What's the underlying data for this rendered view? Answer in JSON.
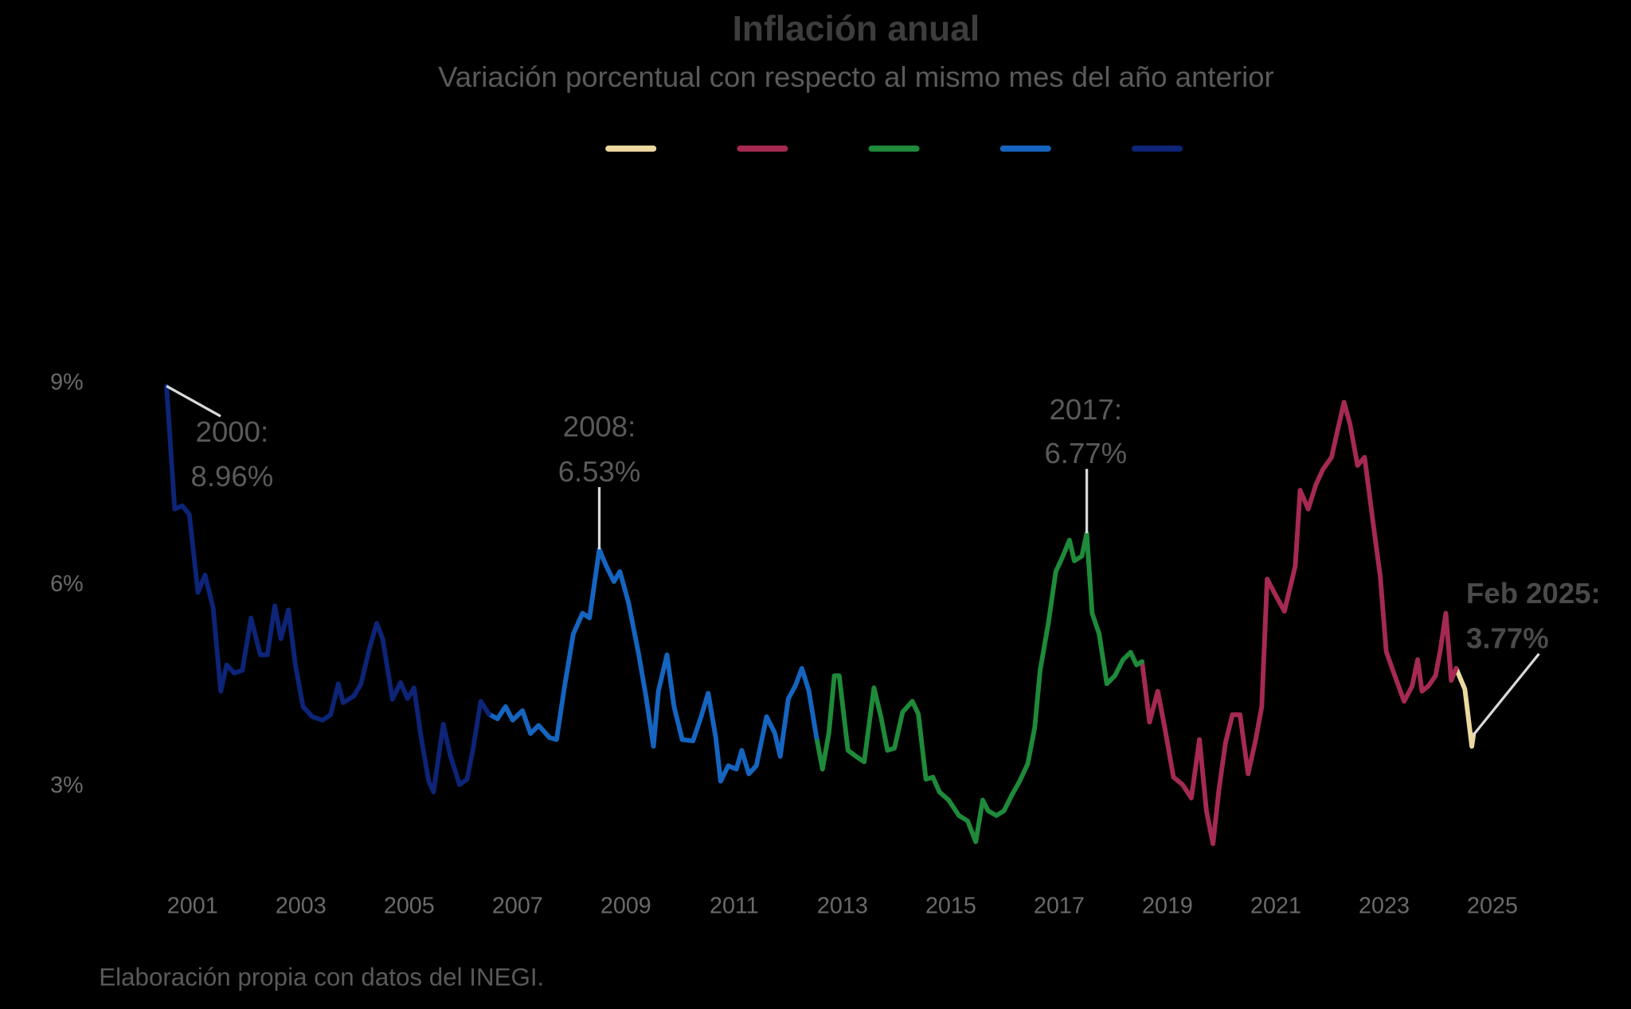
{
  "chart_data": {
    "type": "line",
    "title": "Inflación anual",
    "subtitle": "Variación porcentual con respecto al mismo mes del año anterior",
    "source": "Elaboración propia con datos del INEGI.",
    "xlim": [
      2000,
      2026
    ],
    "xticks": [
      2001,
      2003,
      2005,
      2007,
      2009,
      2011,
      2013,
      2015,
      2017,
      2019,
      2021,
      2023,
      2025
    ],
    "ylim": [
      1.5,
      10
    ],
    "yticks": [
      {
        "value": 3,
        "label": "3%"
      },
      {
        "value": 6,
        "label": "6%"
      },
      {
        "value": 9,
        "label": "9%"
      }
    ],
    "grid": false,
    "series": [
      {
        "color": "#ecd9a0",
        "x": [
          2024.33,
          2024.49,
          2024.62,
          2024.65
        ],
        "values": [
          4.76,
          4.45,
          3.6,
          3.77
        ]
      },
      {
        "color": "#a52a52",
        "x": [
          2018.53,
          2018.67,
          2018.82,
          2018.95,
          2019.11,
          2019.28,
          2019.44,
          2019.59,
          2019.72,
          2019.84,
          2019.95,
          2020.07,
          2020.2,
          2020.34,
          2020.49,
          2020.63,
          2020.74,
          2020.84,
          2020.97,
          2021.16,
          2021.36,
          2021.45,
          2021.6,
          2021.74,
          2021.87,
          2022.03,
          2022.16,
          2022.26,
          2022.37,
          2022.51,
          2022.64,
          2022.79,
          2022.93,
          2023.04,
          2023.18,
          2023.37,
          2023.52,
          2023.62,
          2023.7,
          2023.82,
          2023.95,
          2024.04,
          2024.14,
          2024.24,
          2024.33
        ],
        "values": [
          4.86,
          3.96,
          4.42,
          3.88,
          3.14,
          3.03,
          2.83,
          3.7,
          2.64,
          2.15,
          2.95,
          3.65,
          4.07,
          4.07,
          3.19,
          3.7,
          4.19,
          6.09,
          5.89,
          5.61,
          6.28,
          7.41,
          7.13,
          7.49,
          7.72,
          7.9,
          8.37,
          8.72,
          8.4,
          7.78,
          7.9,
          6.97,
          6.12,
          5.01,
          4.69,
          4.27,
          4.5,
          4.89,
          4.42,
          4.5,
          4.65,
          5.04,
          5.58,
          4.58,
          4.76
        ]
      },
      {
        "color": "#1e8a3a",
        "x": [
          2012.52,
          2012.63,
          2012.75,
          2012.85,
          2012.94,
          2013.1,
          2013.25,
          2013.4,
          2013.58,
          2013.71,
          2013.83,
          2013.96,
          2014.11,
          2014.29,
          2014.4,
          2014.54,
          2014.67,
          2014.79,
          2014.96,
          2015.15,
          2015.31,
          2015.46,
          2015.59,
          2015.69,
          2015.84,
          2015.98,
          2016.13,
          2016.27,
          2016.42,
          2016.55,
          2016.65,
          2016.8,
          2016.94,
          2017.07,
          2017.19,
          2017.28,
          2017.42,
          2017.51,
          2017.61,
          2017.74,
          2017.88,
          2018.03,
          2018.18,
          2018.32,
          2018.43,
          2018.53
        ],
        "values": [
          3.73,
          3.26,
          3.8,
          4.65,
          4.65,
          3.54,
          3.45,
          3.37,
          4.47,
          4.04,
          3.54,
          3.57,
          4.11,
          4.27,
          4.08,
          3.11,
          3.14,
          2.92,
          2.8,
          2.57,
          2.49,
          2.18,
          2.8,
          2.64,
          2.57,
          2.64,
          2.88,
          3.08,
          3.34,
          3.88,
          4.73,
          5.43,
          6.2,
          6.43,
          6.67,
          6.36,
          6.43,
          6.77,
          5.58,
          5.27,
          4.53,
          4.65,
          4.89,
          5.0,
          4.81,
          4.86
        ]
      },
      {
        "color": "#1565c0",
        "x": [
          2006.47,
          2006.63,
          2006.78,
          2006.91,
          2007.09,
          2007.24,
          2007.39,
          2007.59,
          2007.72,
          2007.87,
          2008.03,
          2008.2,
          2008.33,
          2008.51,
          2008.64,
          2008.78,
          2008.89,
          2009.05,
          2009.24,
          2009.37,
          2009.51,
          2009.6,
          2009.76,
          2009.89,
          2010.04,
          2010.24,
          2010.39,
          2010.52,
          2010.66,
          2010.75,
          2010.89,
          2011.04,
          2011.14,
          2011.27,
          2011.41,
          2011.6,
          2011.75,
          2011.85,
          2012.0,
          2012.13,
          2012.25,
          2012.38,
          2012.52
        ],
        "values": [
          4.08,
          4.01,
          4.19,
          3.99,
          4.13,
          3.79,
          3.91,
          3.73,
          3.7,
          4.5,
          5.27,
          5.58,
          5.51,
          6.53,
          6.28,
          6.05,
          6.2,
          5.74,
          4.96,
          4.35,
          3.6,
          4.42,
          4.96,
          4.19,
          3.7,
          3.68,
          4.04,
          4.39,
          3.73,
          3.08,
          3.31,
          3.26,
          3.54,
          3.19,
          3.31,
          4.04,
          3.8,
          3.45,
          4.31,
          4.5,
          4.76,
          4.42,
          3.73
        ]
      },
      {
        "color": "#0d2477",
        "x": [
          2000.52,
          2000.67,
          2000.81,
          2000.94,
          2001.1,
          2001.23,
          2001.38,
          2001.52,
          2001.63,
          2001.77,
          2001.92,
          2002.08,
          2002.25,
          2002.38,
          2002.52,
          2002.63,
          2002.77,
          2002.9,
          2003.04,
          2003.21,
          2003.4,
          2003.55,
          2003.69,
          2003.78,
          2003.98,
          2004.11,
          2004.26,
          2004.4,
          2004.51,
          2004.69,
          2004.84,
          2004.97,
          2005.09,
          2005.22,
          2005.36,
          2005.45,
          2005.63,
          2005.76,
          2005.93,
          2006.07,
          2006.18,
          2006.32,
          2006.47
        ],
        "values": [
          8.96,
          7.13,
          7.18,
          7.05,
          5.89,
          6.15,
          5.66,
          4.42,
          4.81,
          4.69,
          4.73,
          5.51,
          4.96,
          4.96,
          5.69,
          5.2,
          5.63,
          4.81,
          4.19,
          4.04,
          3.99,
          4.07,
          4.53,
          4.25,
          4.35,
          4.53,
          5.04,
          5.43,
          5.2,
          4.3,
          4.55,
          4.31,
          4.47,
          3.73,
          3.08,
          2.92,
          3.93,
          3.46,
          3.03,
          3.11,
          3.57,
          4.27,
          4.08
        ]
      }
    ],
    "annotations": [
      {
        "label": "2000:",
        "value_label": "8.96%",
        "x": 2000.52,
        "y": 8.96
      },
      {
        "label": "2008:",
        "value_label": "6.53%",
        "x": 2008.51,
        "y": 6.53
      },
      {
        "label": "2017:",
        "value_label": "6.77%",
        "x": 2017.51,
        "y": 6.77
      },
      {
        "label": "Feb 2025:",
        "value_label": "3.77%",
        "x": 2024.65,
        "y": 3.77
      }
    ]
  }
}
